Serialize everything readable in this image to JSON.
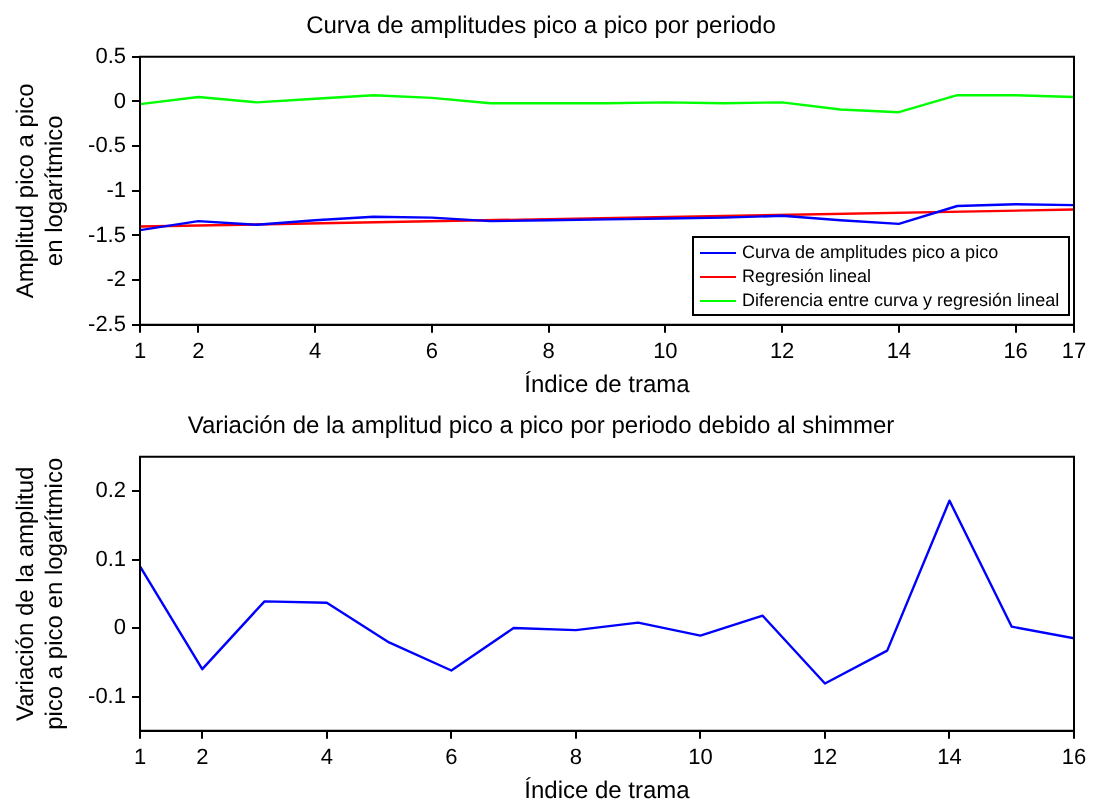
{
  "chart_data": [
    {
      "type": "line",
      "title": "Curva de amplitudes pico a pico por periodo",
      "xlabel": "Índice de trama",
      "ylabel": "Amplitud pico a pico\nen logarítmico",
      "x": [
        1,
        2,
        3,
        4,
        5,
        6,
        7,
        8,
        9,
        10,
        11,
        12,
        13,
        14,
        15,
        16,
        17
      ],
      "series": [
        {
          "name": "Curva de amplitudes pico a pico",
          "color": "#0000ff",
          "values": [
            -1.44,
            -1.34,
            -1.38,
            -1.33,
            -1.29,
            -1.3,
            -1.34,
            -1.33,
            -1.32,
            -1.31,
            -1.3,
            -1.28,
            -1.33,
            -1.37,
            -1.17,
            -1.15,
            -1.16
          ]
        },
        {
          "name": "Regresión lineal",
          "color": "#ff0000",
          "x": [
            1,
            17
          ],
          "values": [
            -1.4,
            -1.21
          ]
        },
        {
          "name": "Diferencia entre curva y regresión lineal",
          "color": "#00ff00",
          "values": [
            -0.03,
            0.05,
            -0.01,
            0.03,
            0.07,
            0.04,
            -0.02,
            -0.02,
            -0.02,
            -0.01,
            -0.02,
            -0.01,
            -0.09,
            -0.12,
            0.07,
            0.07,
            0.05
          ]
        }
      ],
      "xlim": [
        1,
        17
      ],
      "xticks": [
        1,
        2,
        4,
        6,
        8,
        10,
        12,
        14,
        16,
        17
      ],
      "ylim": [
        -2.5,
        0.5
      ],
      "yticks": [
        -2.5,
        -2,
        -1.5,
        -1,
        -0.5,
        0,
        0.5
      ],
      "legend": "bottom right"
    },
    {
      "type": "line",
      "title": "Variación de la amplitud pico a pico por periodo debido al shimmer",
      "xlabel": "Índice de trama",
      "ylabel": "Variación de la amplitud\npico a pico en logarítmico",
      "x": [
        1,
        2,
        3,
        4,
        5,
        6,
        7,
        8,
        9,
        10,
        11,
        12,
        13,
        14,
        15,
        16
      ],
      "series": [
        {
          "color": "#0000ff",
          "values": [
            0.09,
            -0.06,
            0.039,
            0.037,
            -0.021,
            -0.062,
            0,
            -0.003,
            0.008,
            -0.011,
            0.018,
            -0.081,
            -0.033,
            0.186,
            0.002,
            -0.015
          ]
        }
      ],
      "xlim": [
        1,
        16
      ],
      "xticks": [
        1,
        2,
        4,
        6,
        8,
        10,
        12,
        14,
        16
      ],
      "ylim": [
        -0.15,
        0.25
      ],
      "yticks": [
        -0.1,
        0,
        0.1,
        0.2
      ]
    }
  ]
}
